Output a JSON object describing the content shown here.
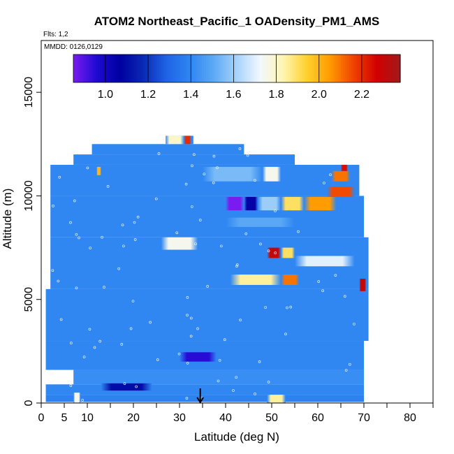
{
  "chart_data": {
    "type": "heatmap",
    "title": "ATOM2 Northeast_Pacific_1 OADensity_PM1_AMS",
    "flights_note": "Flts: 1,2",
    "dates_note": "MMDD: 0126,0129",
    "xlabel": "Latitude (deg N)",
    "ylabel": "Altitude (m)",
    "xlim": [
      0,
      85
    ],
    "ylim": [
      0,
      17500
    ],
    "xticks": [
      0,
      5,
      10,
      20,
      30,
      40,
      50,
      60,
      70,
      80
    ],
    "xtick_labels": [
      "0",
      "5",
      "10",
      "20",
      "30",
      "40",
      "50",
      "60",
      "70",
      "80"
    ],
    "yticks": [
      0,
      5000,
      10000,
      15000
    ],
    "ytick_labels": [
      "0",
      "5000",
      "10000",
      "15000"
    ],
    "colorbar": {
      "range": [
        0.85,
        2.38
      ],
      "ticks": [
        1.0,
        1.2,
        1.4,
        1.6,
        1.8,
        2.0,
        2.2
      ],
      "tick_labels": [
        "1.0",
        "1.2",
        "1.4",
        "1.6",
        "1.8",
        "2.0",
        "2.2"
      ],
      "colors": [
        "#7a1cf0",
        "#1e0ad2",
        "#0000a0",
        "#0a2ab4",
        "#1f64e6",
        "#2f86f2",
        "#5ba9f5",
        "#a6d3fa",
        "#f2f8fe",
        "#fff5b0",
        "#ffd12e",
        "#ff9b00",
        "#f04200",
        "#d20000",
        "#a01a1a"
      ]
    },
    "base_value": 1.4,
    "base_color": "#2f86f2",
    "arrow_latitude": 34.5,
    "bands": [
      {
        "lat": [
          1,
          70
        ],
        "alt": [
          50,
          400
        ],
        "value": 1.38
      },
      {
        "lat": [
          1,
          70
        ],
        "alt": [
          400,
          900
        ],
        "value": 1.4
      },
      {
        "lat": [
          7,
          70
        ],
        "alt": [
          900,
          1600
        ],
        "value": 1.42
      },
      {
        "lat": [
          1,
          70
        ],
        "alt": [
          1600,
          3000
        ],
        "value": 1.4
      },
      {
        "lat": [
          1,
          71
        ],
        "alt": [
          3000,
          5500
        ],
        "value": 1.4
      },
      {
        "lat": [
          2,
          71
        ],
        "alt": [
          5500,
          8000
        ],
        "value": 1.4
      },
      {
        "lat": [
          2,
          70
        ],
        "alt": [
          8000,
          10000
        ],
        "value": 1.4
      },
      {
        "lat": [
          2,
          69
        ],
        "alt": [
          10000,
          11500
        ],
        "value": 1.4
      },
      {
        "lat": [
          7,
          55
        ],
        "alt": [
          11500,
          12000
        ],
        "value": 1.4
      },
      {
        "lat": [
          11,
          44
        ],
        "alt": [
          12000,
          12500
        ],
        "value": 1.4
      },
      {
        "lat": [
          28,
          33
        ],
        "alt": [
          12500,
          12900
        ],
        "value": 1.4
      }
    ],
    "features": [
      {
        "lat": [
          30,
          38
        ],
        "alt": [
          2000,
          2450
        ],
        "value": 0.95
      },
      {
        "lat": [
          13,
          24
        ],
        "alt": [
          600,
          950
        ],
        "value": 1.1
      },
      {
        "lat": [
          7,
          8.5
        ],
        "alt": [
          0,
          500
        ],
        "value": 1.75
      },
      {
        "lat": [
          49,
          53
        ],
        "alt": [
          0,
          400
        ],
        "value": 1.85
      },
      {
        "lat": [
          40,
          44
        ],
        "alt": [
          9300,
          9950
        ],
        "value": 0.85
      },
      {
        "lat": [
          44,
          47
        ],
        "alt": [
          9300,
          9950
        ],
        "value": 1.05
      },
      {
        "lat": [
          47,
          52
        ],
        "alt": [
          9300,
          9950
        ],
        "value": 1.6
      },
      {
        "lat": [
          52,
          57
        ],
        "alt": [
          9300,
          9950
        ],
        "value": 1.9
      },
      {
        "lat": [
          57,
          64
        ],
        "alt": [
          9300,
          9950
        ],
        "value": 2.05
      },
      {
        "lat": [
          62,
          68
        ],
        "alt": [
          9950,
          10450
        ],
        "value": 2.15
      },
      {
        "lat": [
          26,
          34
        ],
        "alt": [
          7400,
          8000
        ],
        "value": 1.75
      },
      {
        "lat": [
          49,
          52
        ],
        "alt": [
          7000,
          7500
        ],
        "value": 2.3
      },
      {
        "lat": [
          52,
          55
        ],
        "alt": [
          7000,
          7500
        ],
        "value": 1.9
      },
      {
        "lat": [
          55,
          68
        ],
        "alt": [
          6600,
          7100
        ],
        "value": 1.7
      },
      {
        "lat": [
          41,
          52
        ],
        "alt": [
          5700,
          6200
        ],
        "value": 1.85
      },
      {
        "lat": [
          52,
          56
        ],
        "alt": [
          5700,
          6200
        ],
        "value": 2.1
      },
      {
        "lat": [
          40,
          55
        ],
        "alt": [
          8500,
          8950
        ],
        "value": 1.5
      },
      {
        "lat": [
          27,
          31
        ],
        "alt": [
          12500,
          12900
        ],
        "value": 1.8
      },
      {
        "lat": [
          31,
          32.5
        ],
        "alt": [
          12500,
          12900
        ],
        "value": 2.2
      },
      {
        "lat": [
          35,
          48
        ],
        "alt": [
          10700,
          11400
        ],
        "value": 1.55
      },
      {
        "lat": [
          48,
          52
        ],
        "alt": [
          10700,
          11400
        ],
        "value": 1.75
      },
      {
        "lat": [
          63,
          67
        ],
        "alt": [
          10700,
          11200
        ],
        "value": 2.1
      },
      {
        "lat": [
          65,
          66.5
        ],
        "alt": [
          11200,
          11500
        ],
        "value": 2.25
      },
      {
        "lat": [
          12,
          13
        ],
        "alt": [
          11000,
          11400
        ],
        "value": 2.0
      },
      {
        "lat": [
          69,
          70.5
        ],
        "alt": [
          5400,
          6000
        ],
        "value": 2.3
      }
    ]
  }
}
